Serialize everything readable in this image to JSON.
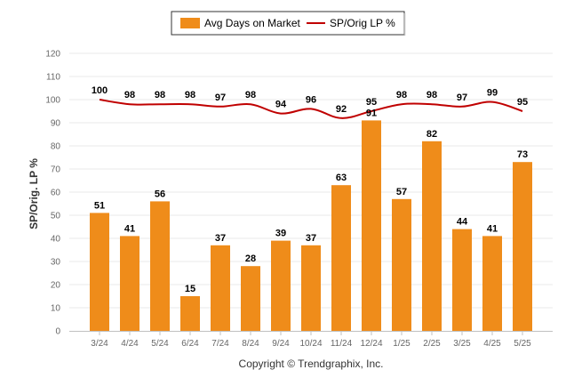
{
  "chart_data": {
    "type": "bar",
    "categories": [
      "3/24",
      "4/24",
      "5/24",
      "6/24",
      "7/24",
      "8/24",
      "9/24",
      "10/24",
      "11/24",
      "12/24",
      "1/25",
      "2/25",
      "3/25",
      "4/25",
      "5/25"
    ],
    "series": [
      {
        "name": "Avg Days on Market",
        "type": "bar",
        "color": "#ef8c1a",
        "values": [
          51,
          41,
          56,
          15,
          37,
          28,
          39,
          37,
          63,
          91,
          57,
          82,
          44,
          41,
          73
        ]
      },
      {
        "name": "SP/Orig LP %",
        "type": "line",
        "color": "#c00000",
        "values": [
          100,
          98,
          98,
          98,
          97,
          98,
          94,
          96,
          92,
          95,
          98,
          98,
          97,
          99,
          95
        ]
      }
    ],
    "ylabel": "SP/Orig. LP %",
    "ylim": [
      0,
      120
    ],
    "yticks": [
      0,
      10,
      20,
      30,
      40,
      50,
      60,
      70,
      80,
      90,
      100,
      110,
      120
    ],
    "grid": true,
    "legend_position": "top-center"
  },
  "footer": {
    "copyright": "Copyright © Trendgraphix, Inc."
  }
}
